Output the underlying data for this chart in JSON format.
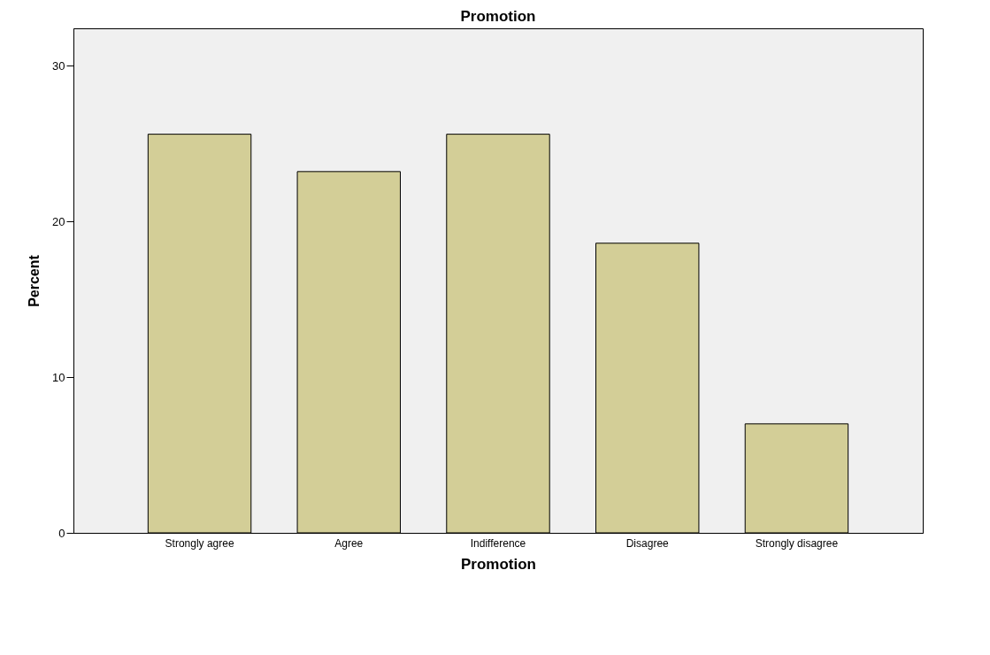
{
  "chart_data": {
    "type": "bar",
    "title": "Promotion",
    "xlabel": "Promotion",
    "ylabel": "Percent",
    "categories": [
      "Strongly agree",
      "Agree",
      "Indifference",
      "Disagree",
      "Strongly disagree"
    ],
    "values": [
      25.6,
      23.2,
      25.6,
      18.6,
      7.0
    ],
    "color": "#d3ce97",
    "ylim": [
      0,
      32.4
    ],
    "yticks": [
      0,
      10,
      20,
      30
    ],
    "grid": false
  }
}
